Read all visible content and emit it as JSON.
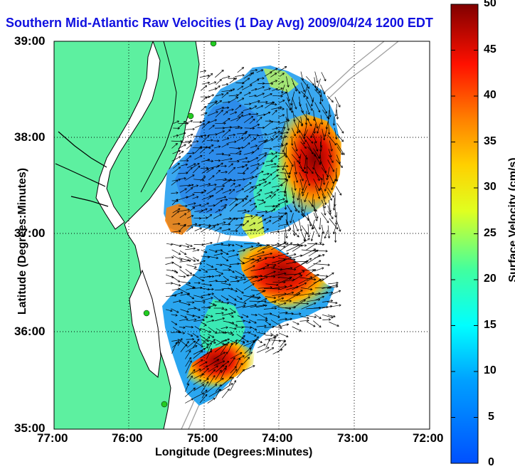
{
  "title": "Southern Mid-Atlantic Raw Velocities (1 Day Avg) 2009/04/24 1200 EDT",
  "x_axis": {
    "label": "Longitude (Degrees:Minutes)",
    "ticks": [
      "77:00",
      "76:00",
      "75:00",
      "74:00",
      "73:00",
      "72:00"
    ]
  },
  "y_axis": {
    "label": "Latitude (Degrees:Minutes)",
    "ticks": [
      "39:00",
      "38:00",
      "37:00",
      "36:00",
      "35:00"
    ]
  },
  "colorbar": {
    "label": "Surface Velocity (cm/s)",
    "ticks": [
      "50",
      "45",
      "40",
      "35",
      "30",
      "25",
      "20",
      "15",
      "10",
      "5",
      "0"
    ],
    "range": [
      0,
      50
    ],
    "colormap": "jet"
  },
  "colors": {
    "land": "#5df0a0",
    "title": "#1010e0",
    "coast_line": "#000000",
    "shelf_contour": "#a0a0a0",
    "station_marker": "#22cc22"
  },
  "map": {
    "lon_range": [
      "77:00",
      "72:00"
    ],
    "lat_range": [
      "35:00",
      "39:00"
    ],
    "grid": "dotted"
  }
}
